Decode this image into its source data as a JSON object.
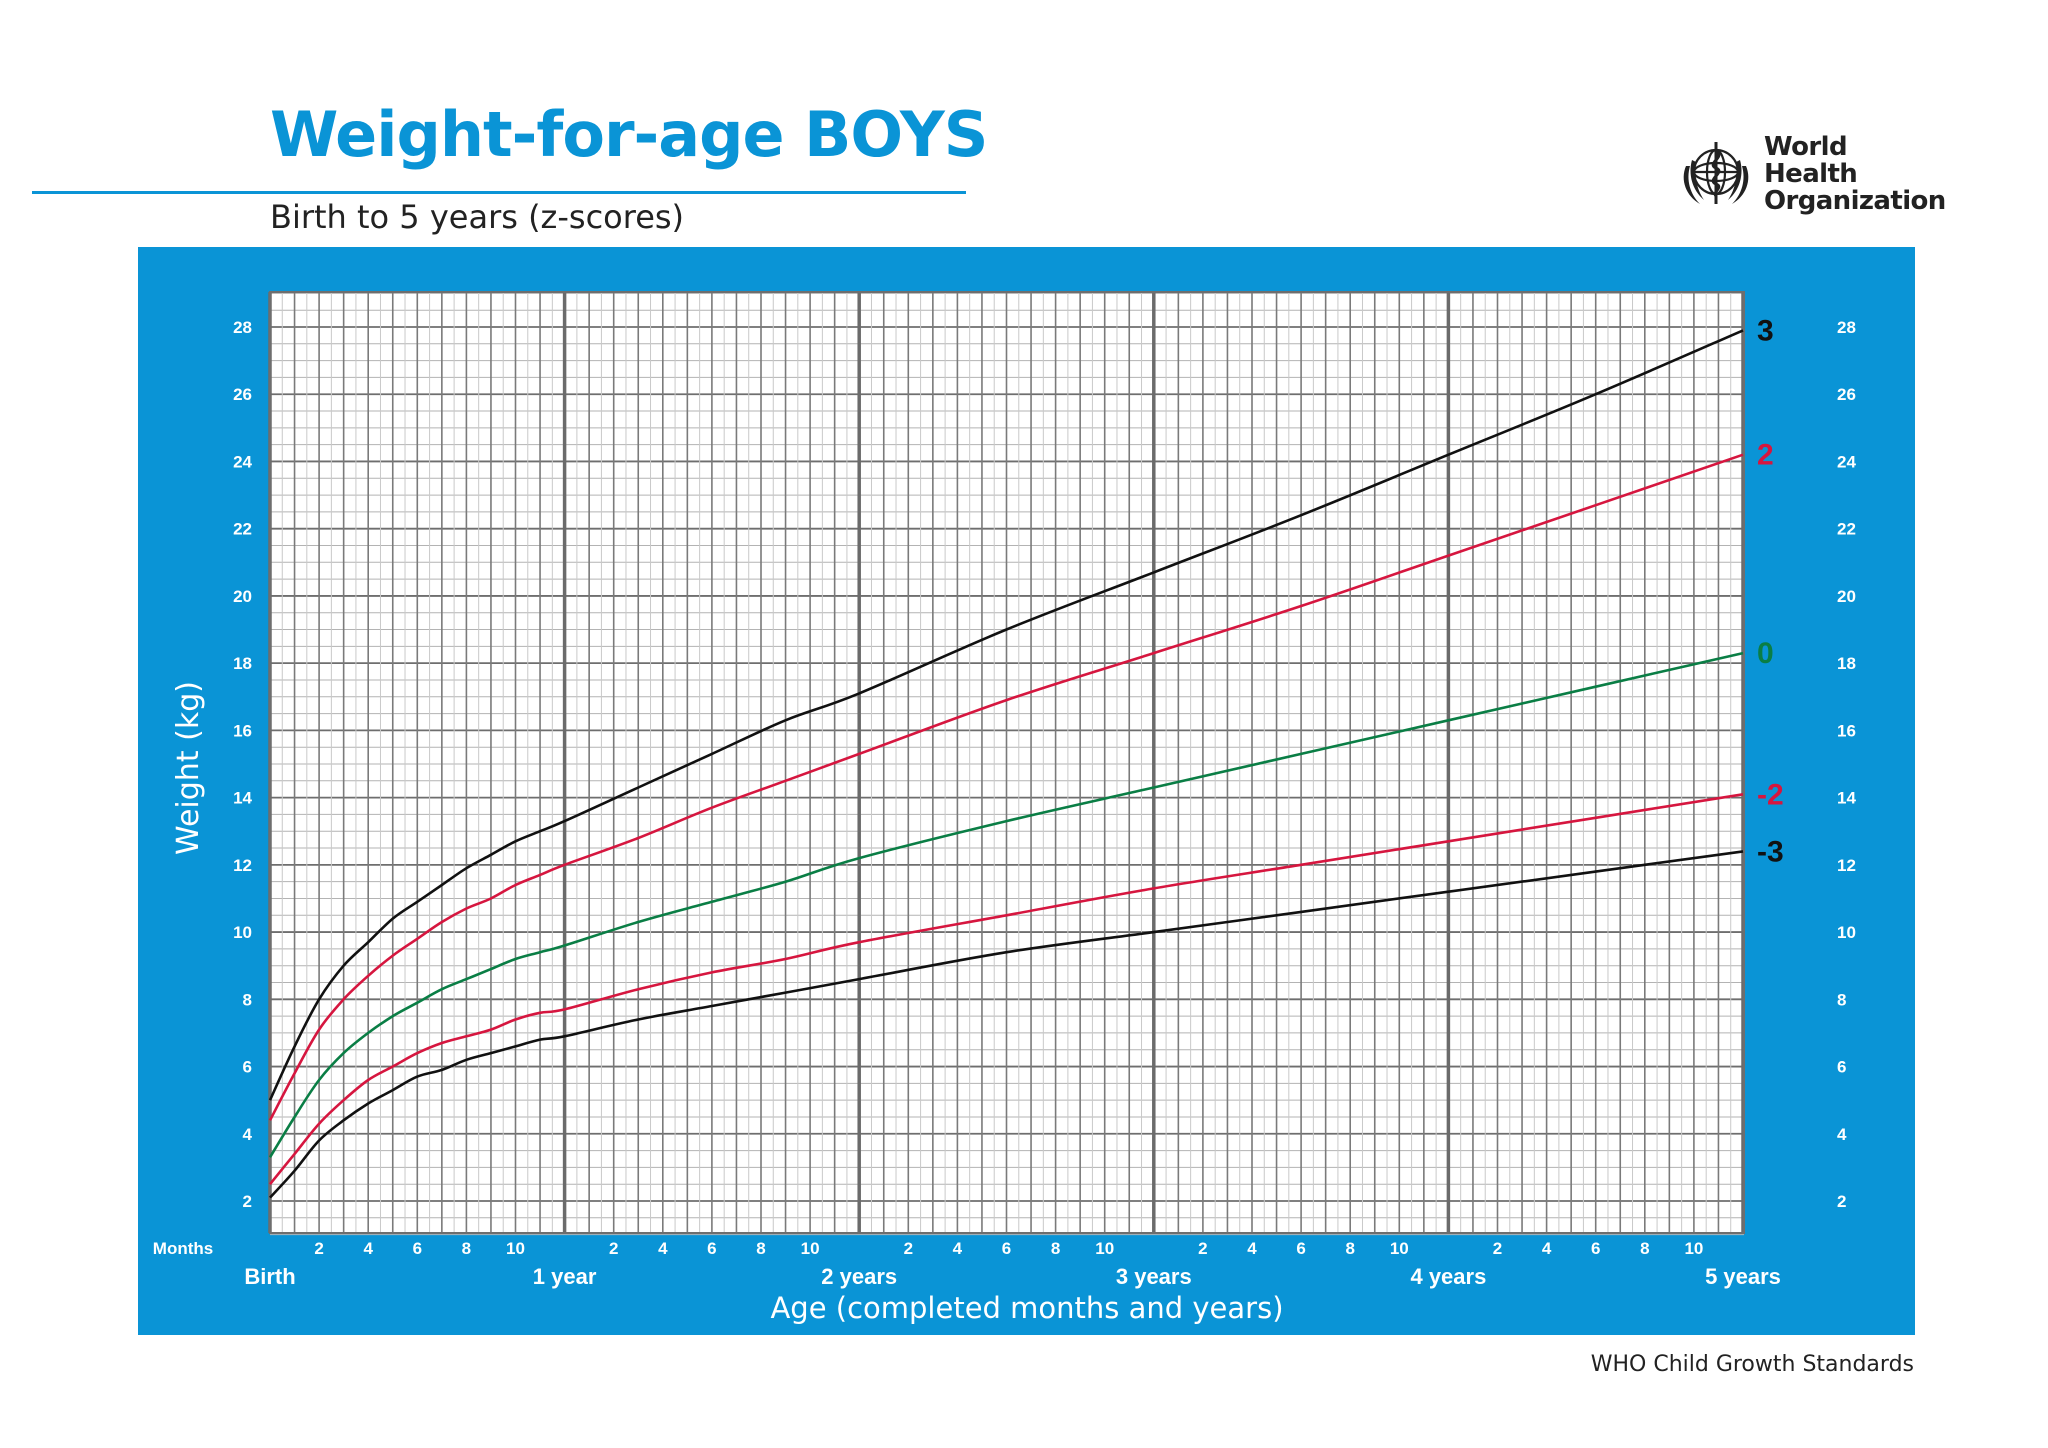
{
  "header": {
    "title": "Weight-for-age BOYS",
    "subtitle": "Birth to 5 years (z-scores)",
    "logo_text": "World Health Organization",
    "logo_icon": "who-emblem-icon"
  },
  "footer": {
    "text": "WHO Child Growth Standards"
  },
  "colors": {
    "brand_blue": "#0a94d6",
    "z_pm3": "#111111",
    "z_pm2": "#d6163f",
    "z_0": "#0a7e45"
  },
  "chart_data": {
    "type": "line",
    "ylabel": "Weight (kg)",
    "xlabel": "Age (completed months and years)",
    "xlim": [
      0,
      60
    ],
    "ylim": [
      1,
      29
    ],
    "y_ticks": [
      2,
      4,
      6,
      8,
      10,
      12,
      14,
      16,
      18,
      20,
      22,
      24,
      26,
      28
    ],
    "month_axis_label": "Months",
    "month_ticks": [
      "2",
      "4",
      "6",
      "8",
      "10"
    ],
    "year_labels": [
      "Birth",
      "1 year",
      "2 years",
      "3 years",
      "4 years",
      "5 years"
    ],
    "grid": true,
    "x": [
      0,
      1,
      2,
      3,
      4,
      5,
      6,
      7,
      8,
      9,
      10,
      11,
      12,
      15,
      18,
      21,
      24,
      30,
      36,
      42,
      48,
      54,
      60
    ],
    "series": [
      {
        "name": "3",
        "color": "#111111",
        "values": [
          5.0,
          6.6,
          8.0,
          9.0,
          9.7,
          10.4,
          10.9,
          11.4,
          11.9,
          12.3,
          12.7,
          13.0,
          13.3,
          14.3,
          15.3,
          16.3,
          17.1,
          19.0,
          20.7,
          22.4,
          24.2,
          26.0,
          27.9
        ]
      },
      {
        "name": "2",
        "color": "#d6163f",
        "values": [
          4.4,
          5.8,
          7.1,
          8.0,
          8.7,
          9.3,
          9.8,
          10.3,
          10.7,
          11.0,
          11.4,
          11.7,
          12.0,
          12.8,
          13.7,
          14.5,
          15.3,
          16.9,
          18.3,
          19.7,
          21.2,
          22.7,
          24.2
        ]
      },
      {
        "name": "0",
        "color": "#0a7e45",
        "values": [
          3.3,
          4.5,
          5.6,
          6.4,
          7.0,
          7.5,
          7.9,
          8.3,
          8.6,
          8.9,
          9.2,
          9.4,
          9.6,
          10.3,
          10.9,
          11.5,
          12.2,
          13.3,
          14.3,
          15.3,
          16.3,
          17.3,
          18.3
        ]
      },
      {
        "name": "-2",
        "color": "#d6163f",
        "values": [
          2.5,
          3.4,
          4.3,
          5.0,
          5.6,
          6.0,
          6.4,
          6.7,
          6.9,
          7.1,
          7.4,
          7.6,
          7.7,
          8.3,
          8.8,
          9.2,
          9.7,
          10.5,
          11.3,
          12.0,
          12.7,
          13.4,
          14.1
        ]
      },
      {
        "name": "-3",
        "color": "#111111",
        "values": [
          2.1,
          2.9,
          3.8,
          4.4,
          4.9,
          5.3,
          5.7,
          5.9,
          6.2,
          6.4,
          6.6,
          6.8,
          6.9,
          7.4,
          7.8,
          8.2,
          8.6,
          9.4,
          10.0,
          10.6,
          11.2,
          11.8,
          12.4
        ]
      }
    ]
  }
}
